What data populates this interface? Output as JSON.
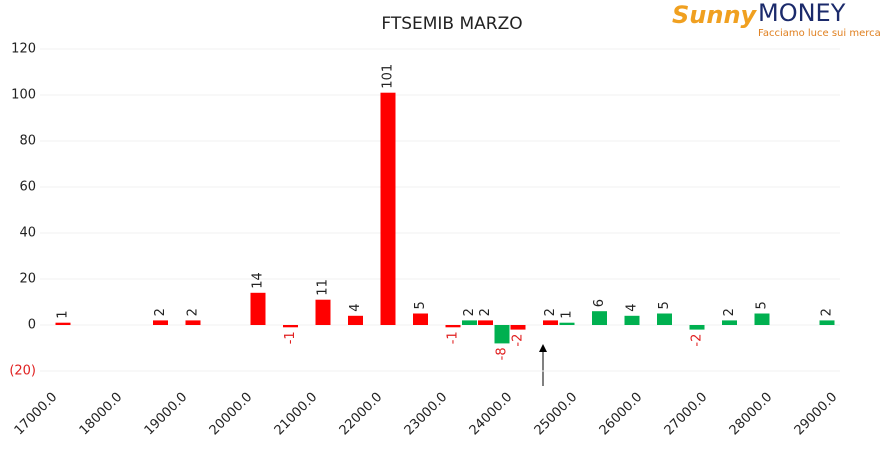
{
  "chart_data": {
    "type": "bar",
    "title": "FTSEMIB MARZO",
    "logo": {
      "name_a": "Sunny",
      "name_b": "MONEY",
      "tagline": "Facciamo luce sui mercati"
    },
    "categories": [
      "17000.0",
      null,
      "18000.0",
      null,
      "19000.0",
      null,
      "20000.0",
      null,
      "21000.0",
      null,
      "22000.0",
      null,
      "23000.0",
      null,
      "24000.0",
      null,
      "25000.0",
      null,
      "26000.0",
      null,
      "27000.0",
      null,
      "28000.0",
      null,
      "29000.0"
    ],
    "series": [
      {
        "color": "#00b050",
        "values": [
          null,
          null,
          null,
          null,
          null,
          null,
          null,
          null,
          null,
          null,
          null,
          null,
          null,
          2,
          -8,
          null,
          1,
          6,
          4,
          5,
          -2,
          2,
          5,
          null,
          2
        ]
      },
      {
        "color": "#ff0000",
        "values": [
          1,
          null,
          null,
          2,
          2,
          null,
          14,
          -1,
          11,
          4,
          101,
          5,
          -1,
          2,
          -2,
          2,
          null,
          null,
          null,
          null,
          null,
          null,
          null,
          null,
          null
        ]
      }
    ],
    "negative_label_color": "#e02020",
    "ylim": [
      -20,
      120
    ],
    "yticks": [
      {
        "value": -20,
        "label": "(20)"
      },
      0,
      20,
      40,
      60,
      80,
      100,
      120
    ],
    "grid": true
  }
}
